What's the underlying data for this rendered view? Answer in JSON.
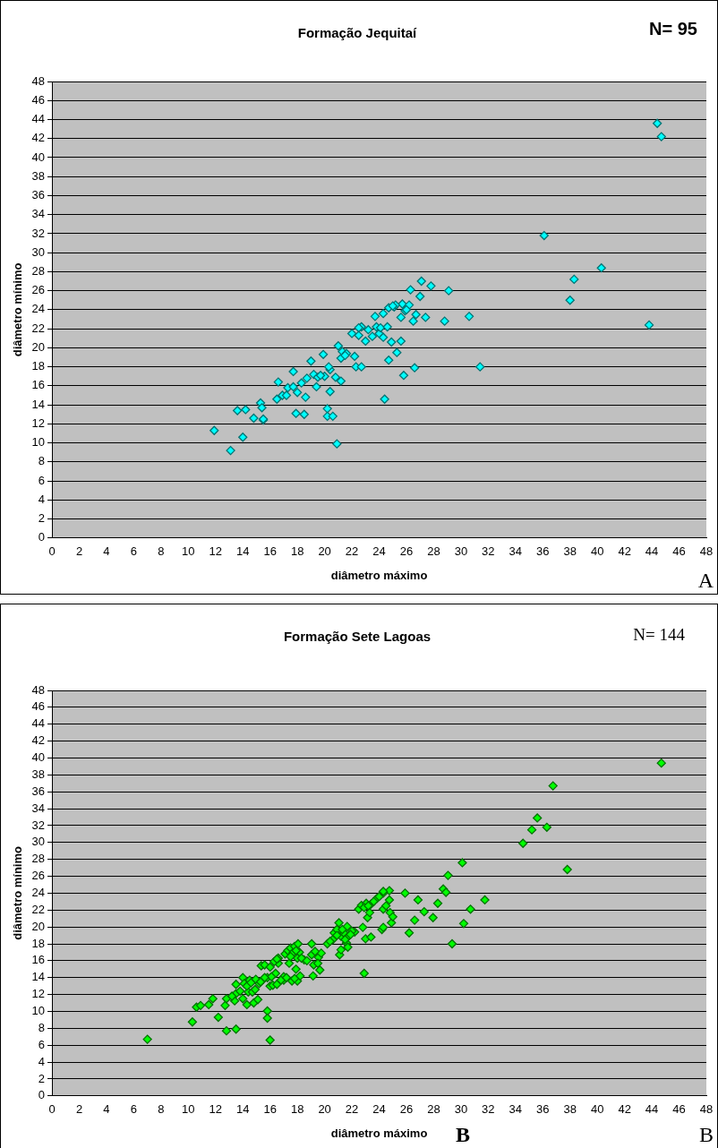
{
  "chart_data": [
    {
      "type": "scatter",
      "title": "Formação Jequitaí",
      "xlabel": "diâmetro máximo",
      "ylabel": "diâmetro mínimo",
      "annotations": [
        "N= 95",
        "A"
      ],
      "xlim": [
        0,
        48
      ],
      "ylim": [
        0,
        48
      ],
      "xticks": [
        0,
        2,
        4,
        6,
        8,
        10,
        12,
        14,
        16,
        18,
        20,
        22,
        24,
        26,
        28,
        30,
        32,
        34,
        36,
        38,
        40,
        42,
        44,
        46,
        48
      ],
      "yticks": [
        0,
        2,
        4,
        6,
        8,
        10,
        12,
        14,
        16,
        18,
        20,
        22,
        24,
        26,
        28,
        30,
        32,
        34,
        36,
        38,
        40,
        42,
        44,
        46,
        48
      ],
      "grid": "y",
      "legend": false,
      "marker": "diamond",
      "series": [
        {
          "color": "#00ffff",
          "x": [
            11.9,
            13.1,
            13.6,
            14.0,
            14.2,
            14.8,
            15.3,
            15.4,
            15.5,
            15.5,
            16.5,
            16.6,
            16.9,
            17.2,
            17.3,
            17.7,
            17.7,
            17.9,
            18.0,
            18.3,
            18.5,
            18.6,
            18.7,
            19.0,
            19.2,
            19.4,
            19.5,
            19.9,
            20.2,
            20.2,
            20.4,
            20.4,
            20.3,
            20.6,
            20.8,
            21.0,
            20.9,
            21.2,
            21.2,
            21.3,
            21.6,
            22.0,
            22.2,
            22.3,
            22.5,
            22.7,
            22.7,
            23.0,
            23.2,
            23.5,
            23.7,
            23.8,
            24.0,
            24.1,
            24.3,
            24.3,
            24.4,
            24.6,
            24.7,
            24.9,
            25.1,
            25.3,
            25.6,
            25.7,
            25.8,
            25.9,
            26.2,
            26.3,
            26.5,
            26.6,
            26.7,
            27.0,
            27.1,
            27.4,
            27.8,
            28.8,
            29.1,
            30.6,
            31.4,
            36.1,
            38.0,
            38.3,
            40.3,
            43.8,
            44.4,
            44.7,
            25.6,
            25.2,
            24.7,
            22.5,
            25.0,
            21.5,
            26.0,
            20.0,
            19.7
          ],
          "values": [
            11.3,
            9.2,
            13.4,
            10.6,
            13.5,
            12.6,
            14.2,
            13.7,
            12.4,
            12.5,
            14.6,
            16.4,
            15.0,
            15.0,
            15.8,
            17.5,
            15.9,
            13.1,
            15.3,
            16.3,
            13.0,
            14.8,
            16.8,
            18.6,
            17.2,
            15.9,
            16.9,
            19.3,
            13.6,
            12.8,
            15.4,
            17.7,
            18.0,
            12.8,
            16.9,
            20.2,
            9.9,
            18.9,
            16.5,
            19.6,
            19.4,
            21.5,
            19.1,
            18.0,
            21.3,
            22.2,
            18.0,
            20.7,
            21.9,
            21.2,
            23.3,
            22.2,
            21.5,
            22.1,
            21.1,
            23.6,
            14.6,
            22.2,
            18.7,
            20.6,
            24.3,
            19.5,
            20.7,
            24.6,
            17.1,
            23.9,
            24.5,
            26.1,
            22.8,
            17.9,
            23.5,
            25.4,
            27.0,
            23.2,
            26.5,
            22.8,
            26.0,
            23.3,
            18.0,
            31.8,
            25.0,
            27.2,
            28.4,
            22.4,
            43.6,
            42.2,
            23.2,
            24.5,
            24.2,
            22.1,
            24.4,
            19.2,
            24.0,
            17.0,
            17.1
          ]
        }
      ]
    },
    {
      "type": "scatter",
      "title": "Formação Sete Lagoas",
      "xlabel": "diâmetro máximo",
      "ylabel": "diâmetro mínimo",
      "annotations": [
        "N= 144",
        "B",
        "B"
      ],
      "xlim": [
        0,
        48
      ],
      "ylim": [
        0,
        48
      ],
      "xticks": [
        0,
        2,
        4,
        6,
        8,
        10,
        12,
        14,
        16,
        18,
        20,
        22,
        24,
        26,
        28,
        30,
        32,
        34,
        36,
        38,
        40,
        42,
        44,
        46,
        48
      ],
      "yticks": [
        0,
        2,
        4,
        6,
        8,
        10,
        12,
        14,
        16,
        18,
        20,
        22,
        24,
        26,
        28,
        30,
        32,
        34,
        36,
        38,
        40,
        42,
        44,
        46,
        48
      ],
      "grid": "y",
      "legend": false,
      "marker": "diamond",
      "series": [
        {
          "color": "#00ff00",
          "x": [
            7.0,
            10.3,
            10.6,
            10.9,
            11.5,
            11.8,
            12.2,
            12.7,
            12.8,
            12.8,
            13.4,
            13.5,
            13.5,
            13.5,
            13.8,
            14.0,
            14.0,
            14.1,
            14.3,
            14.4,
            14.5,
            14.7,
            14.8,
            14.95,
            15.1,
            15.2,
            15.35,
            15.5,
            15.6,
            15.8,
            15.8,
            15.8,
            16.0,
            16.0,
            16.0,
            16.2,
            16.4,
            16.5,
            16.6,
            16.6,
            17.0,
            17.0,
            17.1,
            17.3,
            17.4,
            17.5,
            17.6,
            17.7,
            17.8,
            17.9,
            18.0,
            18.05,
            18.15,
            18.2,
            18.5,
            19.05,
            19.05,
            19.15,
            19.2,
            19.55,
            19.65,
            19.75,
            20.2,
            20.6,
            20.7,
            20.9,
            21.05,
            21.1,
            21.2,
            21.2,
            21.4,
            21.6,
            21.65,
            21.75,
            21.7,
            22.2,
            22.5,
            22.7,
            22.8,
            22.9,
            23.0,
            23.05,
            23.15,
            23.3,
            23.4,
            23.4,
            23.85,
            24.2,
            24.3,
            24.3,
            24.3,
            24.75,
            24.75,
            24.8,
            24.9,
            25.0,
            25.9,
            26.2,
            26.6,
            26.85,
            27.3,
            27.95,
            28.3,
            28.7,
            28.9,
            29.05,
            29.35,
            30.1,
            30.2,
            30.7,
            31.75,
            34.55,
            35.2,
            35.6,
            36.3,
            36.75,
            37.8,
            44.7,
            14.3,
            14.9,
            15.3,
            16.1,
            16.3,
            16.8,
            17.2,
            17.5,
            17.8,
            18.0,
            18.3,
            19.3,
            19.5,
            20.9,
            21.3,
            21.5,
            22.0,
            22.9,
            23.2,
            23.6,
            24.0,
            24.5,
            13.2,
            14.6,
            15.6,
            16.5,
            17.9,
            18.7,
            20.4,
            21.9,
            24.3
          ],
          "values": [
            6.7,
            8.75,
            10.5,
            10.7,
            10.8,
            11.5,
            9.3,
            10.7,
            11.5,
            7.7,
            11.25,
            12.1,
            13.2,
            7.9,
            12.4,
            11.5,
            14.0,
            13.3,
            10.8,
            12.3,
            13.7,
            12.3,
            11.0,
            13.8,
            11.4,
            13.3,
            15.4,
            13.8,
            15.5,
            10.05,
            9.2,
            14.0,
            15.25,
            13.0,
            6.6,
            13.1,
            14.5,
            13.2,
            15.7,
            16.3,
            13.7,
            14.1,
            16.8,
            17.2,
            15.7,
            17.5,
            13.6,
            17.0,
            17.7,
            15.0,
            13.6,
            18.0,
            17.0,
            14.2,
            16.1,
            18.0,
            16.7,
            14.2,
            15.5,
            16.4,
            14.9,
            16.9,
            18.0,
            18.5,
            19.3,
            19.7,
            20.5,
            16.7,
            17.3,
            18.9,
            19.3,
            18.1,
            20.05,
            18.9,
            17.6,
            19.4,
            22.1,
            22.55,
            19.95,
            14.5,
            18.6,
            22.8,
            21.1,
            21.7,
            18.8,
            22.7,
            23.4,
            19.7,
            22.1,
            19.95,
            24.0,
            24.3,
            23.2,
            21.7,
            20.5,
            21.2,
            24.0,
            19.3,
            20.8,
            23.2,
            21.8,
            21.1,
            22.8,
            24.5,
            24.1,
            26.1,
            18.0,
            27.6,
            20.4,
            22.1,
            23.2,
            29.9,
            31.5,
            32.9,
            31.8,
            36.7,
            26.8,
            39.4,
            13.0,
            12.6,
            13.5,
            14.1,
            15.9,
            13.7,
            14.0,
            16.5,
            13.9,
            16.3,
            16.3,
            17.1,
            15.7,
            19.0,
            19.7,
            18.5,
            19.5,
            22.3,
            22.5,
            23.0,
            23.6,
            22.5,
            11.8,
            13.4,
            14.0,
            16.2,
            17.2,
            16.0,
            18.3,
            19.1,
            24.2
          ]
        }
      ]
    }
  ]
}
